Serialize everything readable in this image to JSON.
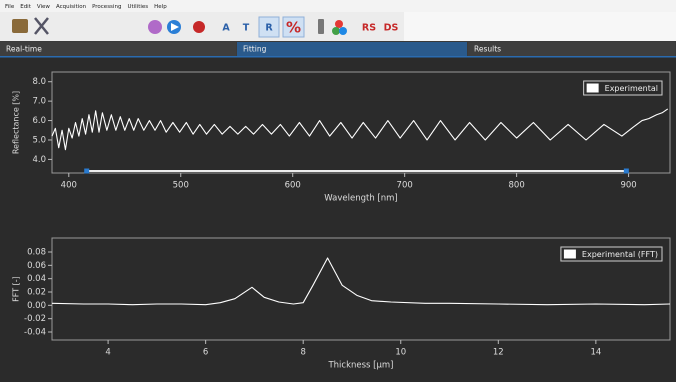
{
  "menu": [
    "File",
    "Edit",
    "View",
    "Acquisition",
    "Processing",
    "Utilities",
    "Help"
  ],
  "toolbar": {
    "buttons": [
      "A",
      "T",
      "R",
      "%",
      "RS",
      "DS"
    ]
  },
  "tabs": [
    "Real-time",
    "Fitting",
    "Results"
  ],
  "chart_data": [
    {
      "type": "line",
      "x_label": "Wavelength [nm]",
      "y_label": "Reflectance [%]",
      "legend": "upper right",
      "grid": false,
      "xlim": [
        385,
        937
      ],
      "ylim": [
        3.3,
        8.5
      ],
      "xticks": [
        400,
        500,
        600,
        700,
        800,
        900
      ],
      "yticks": [
        {
          "value": 4,
          "label": "4.0"
        },
        {
          "value": 5,
          "label": "5.0"
        },
        {
          "value": 6,
          "label": "6.0"
        },
        {
          "value": 7,
          "label": "7.0"
        },
        {
          "value": 8,
          "label": "8.0"
        }
      ],
      "selection": [
        416,
        898
      ],
      "x": [
        385,
        388,
        391,
        394,
        397,
        400,
        403,
        406,
        409,
        412,
        415,
        418,
        421,
        424,
        427,
        430,
        434,
        438,
        442,
        446,
        450,
        454,
        458,
        462,
        467,
        472,
        477,
        482,
        487,
        493,
        499,
        505,
        511,
        517,
        523,
        530,
        537,
        544,
        551,
        558,
        565,
        573,
        581,
        589,
        597,
        606,
        615,
        624,
        633,
        643,
        653,
        663,
        674,
        685,
        696,
        708,
        720,
        732,
        745,
        758,
        772,
        786,
        800,
        815,
        830,
        846,
        862,
        878,
        894,
        905,
        912,
        918,
        925,
        930,
        935
      ],
      "series": [
        {
          "name": "Experimental",
          "color": "#ffffff",
          "values": [
            5.2,
            5.6,
            4.6,
            5.5,
            4.5,
            5.6,
            5.1,
            5.9,
            5.2,
            6.1,
            5.3,
            6.3,
            5.4,
            6.5,
            5.4,
            6.4,
            5.5,
            6.3,
            5.5,
            6.2,
            5.5,
            6.1,
            5.5,
            6.1,
            5.5,
            6.0,
            5.5,
            6.0,
            5.4,
            5.9,
            5.4,
            5.9,
            5.3,
            5.8,
            5.3,
            5.8,
            5.3,
            5.7,
            5.3,
            5.7,
            5.3,
            5.8,
            5.3,
            5.8,
            5.2,
            5.9,
            5.2,
            6.0,
            5.2,
            5.9,
            5.1,
            5.9,
            5.1,
            6.0,
            5.1,
            6.0,
            5.0,
            6.0,
            5.0,
            5.9,
            5.0,
            5.9,
            5.1,
            5.9,
            5.0,
            5.8,
            5.0,
            5.8,
            5.2,
            5.7,
            6.0,
            6.1,
            6.3,
            6.4,
            6.6
          ]
        }
      ]
    },
    {
      "type": "line",
      "x_label": "Thickness [µm]",
      "y_label": "FFT [-]",
      "legend": "upper right",
      "grid": false,
      "xlim": [
        2.85,
        15.52
      ],
      "ylim": [
        -0.052,
        0.101
      ],
      "xticks": [
        4,
        6,
        8,
        10,
        12,
        14
      ],
      "yticks": [
        -0.04,
        -0.02,
        {
          "value": 0,
          "label": "0.00"
        },
        0.02,
        0.04,
        0.06,
        0.08
      ],
      "x": [
        2.85,
        3.5,
        4,
        4.5,
        5,
        5.5,
        6,
        6.3,
        6.6,
        6.95,
        7.2,
        7.5,
        7.8,
        8,
        8.2,
        8.5,
        8.8,
        9.1,
        9.4,
        9.8,
        10.5,
        11,
        12,
        13,
        14,
        15,
        15.52
      ],
      "series": [
        {
          "name": "Experimental (FFT)",
          "color": "#ffffff",
          "values": [
            0.003,
            0.002,
            0.002,
            0.001,
            0.002,
            0.002,
            0.001,
            0.004,
            0.01,
            0.027,
            0.012,
            0.005,
            0.002,
            0.004,
            0.03,
            0.071,
            0.03,
            0.015,
            0.007,
            0.005,
            0.003,
            0.003,
            0.002,
            0.001,
            0.002,
            0.001,
            0.002
          ]
        }
      ]
    }
  ]
}
